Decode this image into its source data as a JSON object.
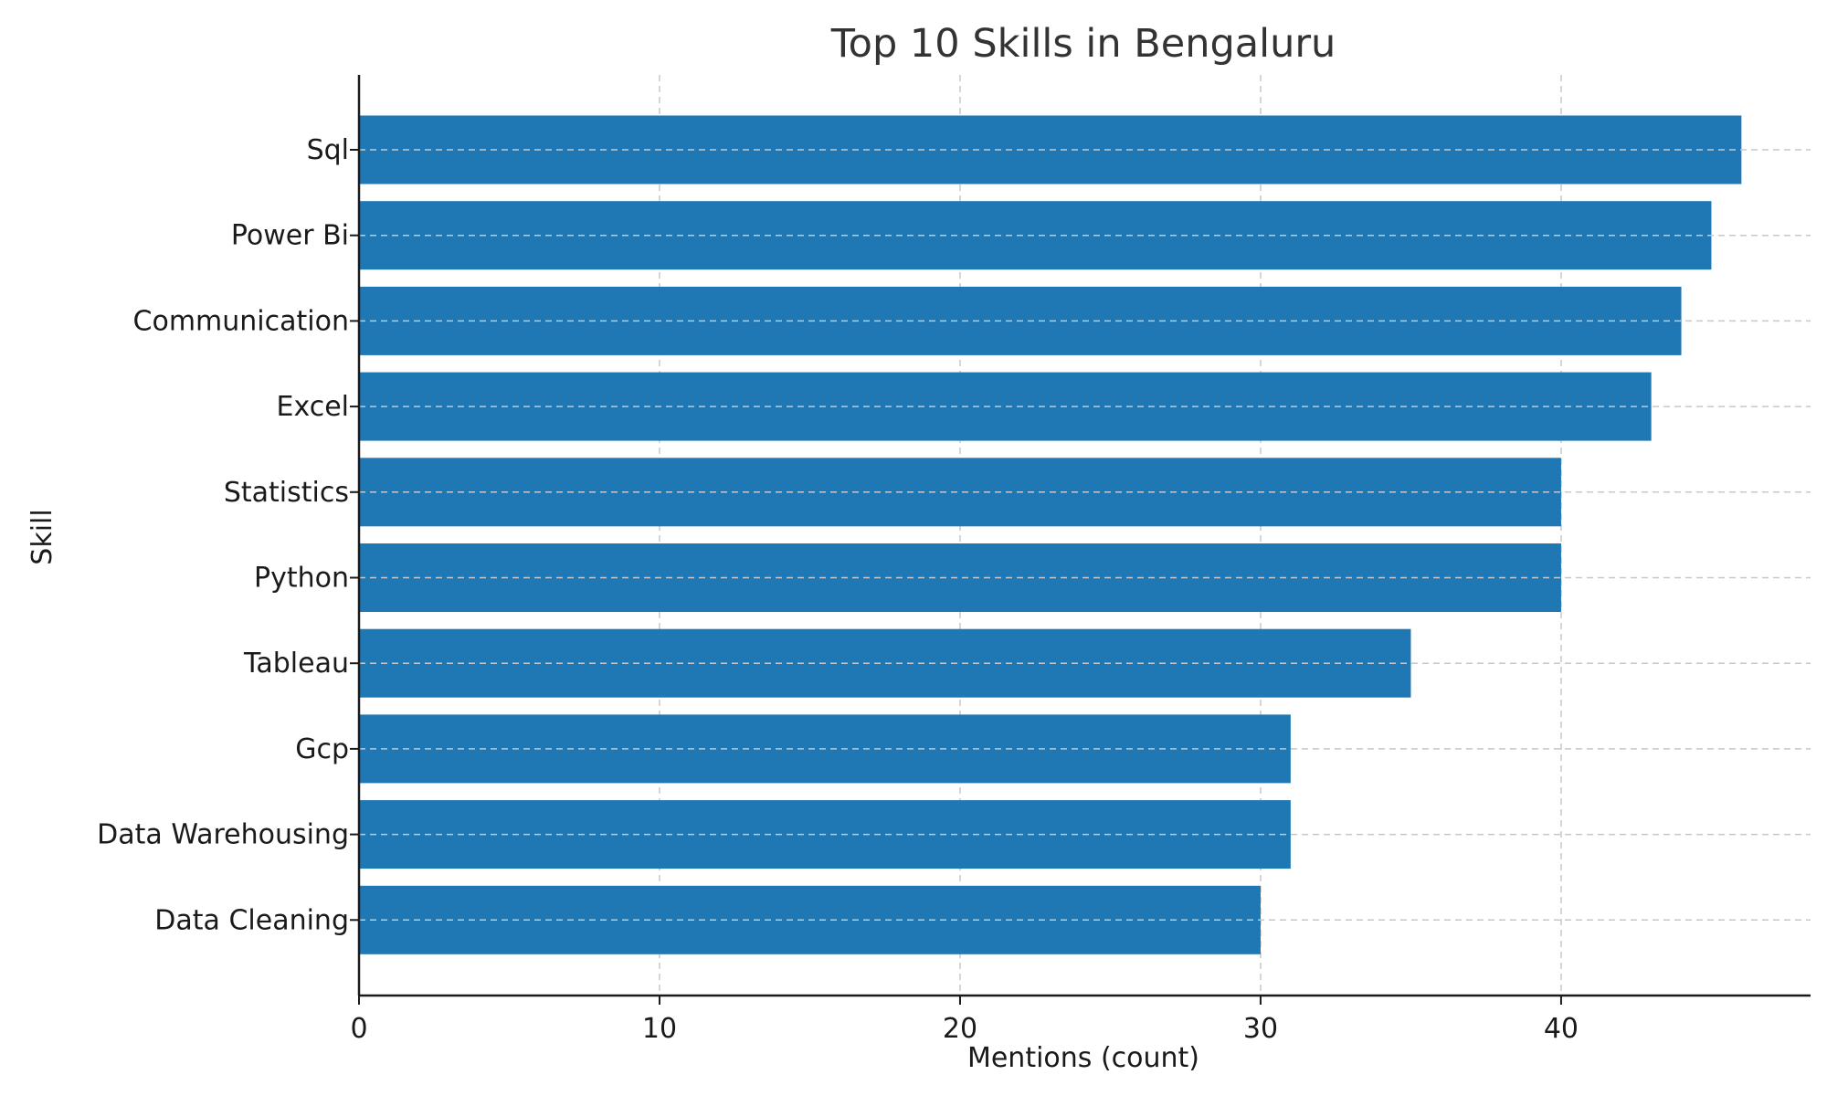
{
  "chart_data": {
    "type": "bar",
    "orientation": "horizontal",
    "title": "Top 10 Skills in Bengaluru",
    "xlabel": "Mentions (count)",
    "ylabel": "Skill",
    "categories": [
      "Sql",
      "Power Bi",
      "Communication",
      "Excel",
      "Statistics",
      "Python",
      "Tableau",
      "Gcp",
      "Data Warehousing",
      "Data Cleaning"
    ],
    "values": [
      46,
      45,
      44,
      43,
      40,
      40,
      35,
      31,
      31,
      30
    ],
    "xlim": [
      0,
      48.3
    ],
    "xticks": [
      0,
      10,
      20,
      30,
      40
    ],
    "grid": true,
    "bar_color": "#1f77b4"
  }
}
